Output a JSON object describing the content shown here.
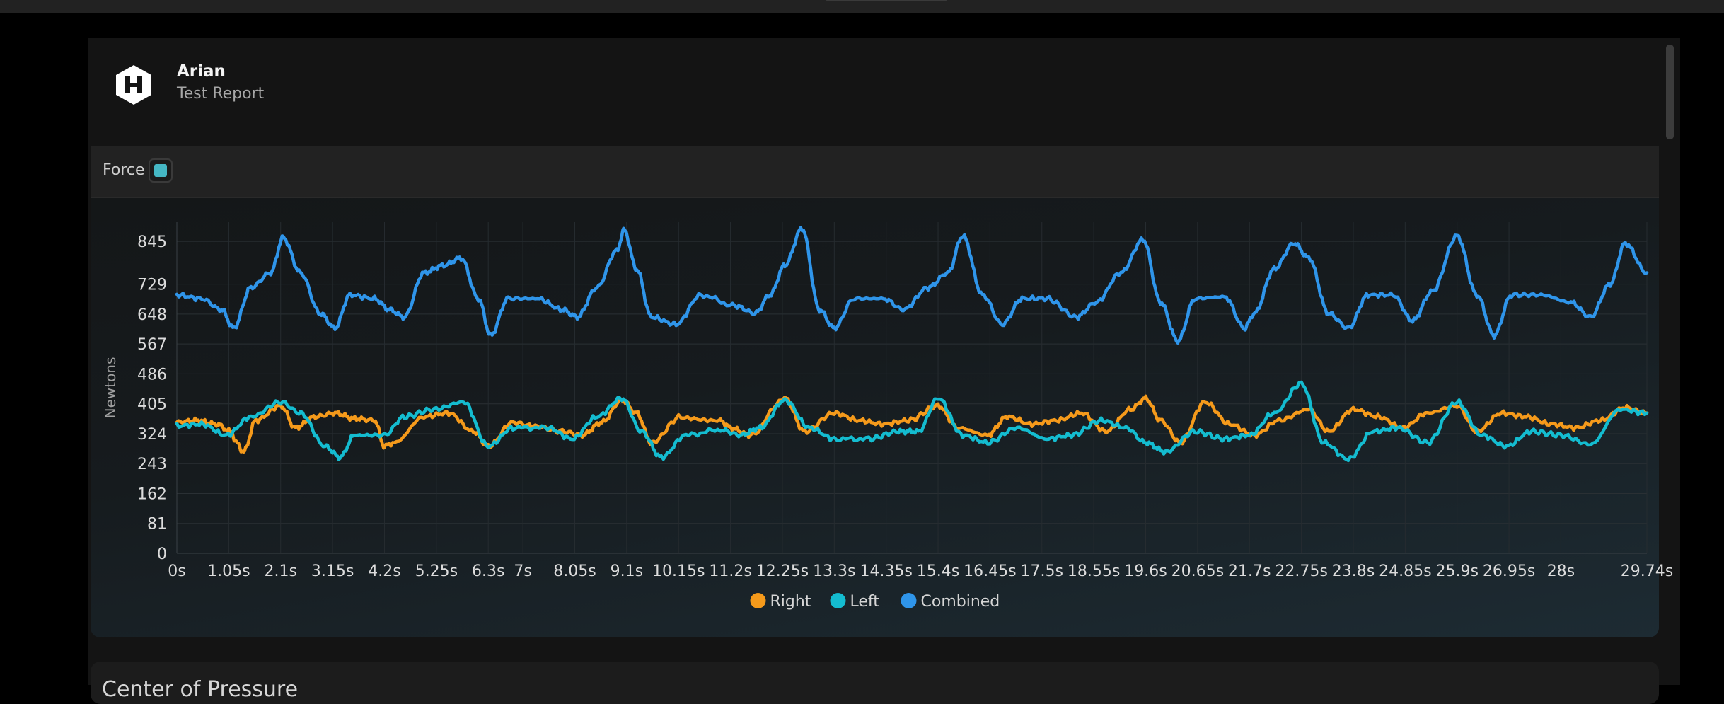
{
  "header": {
    "user_name": "Arian",
    "report_title": "Test Report",
    "logo_icon": "hexagon-h-logo-icon"
  },
  "force_card": {
    "label": "Force",
    "swatch_color": "#45b7c4"
  },
  "next_card": {
    "title": "Center of Pressure"
  },
  "chart_data": {
    "type": "line",
    "title": "Force",
    "xlabel": "",
    "ylabel": "Newtons",
    "xlim": [
      0,
      29.74
    ],
    "ylim": [
      0,
      897
    ],
    "y_ticks": [
      0,
      81,
      162,
      243,
      324,
      405,
      486,
      567,
      648,
      729,
      845
    ],
    "x_ticks": [
      "0s",
      "1.05s",
      "2.1s",
      "3.15s",
      "4.2s",
      "5.25s",
      "6.3s",
      "7s",
      "8.05s",
      "9.1s",
      "10.15s",
      "11.2s",
      "12.25s",
      "13.3s",
      "14.35s",
      "15.4s",
      "16.45s",
      "17.5s",
      "18.55s",
      "19.6s",
      "20.65s",
      "21.7s",
      "22.75s",
      "23.8s",
      "24.85s",
      "25.9s",
      "26.95s",
      "28s",
      "29.74s"
    ],
    "x_tick_values": [
      0,
      1.05,
      2.1,
      3.15,
      4.2,
      5.25,
      6.3,
      7,
      8.05,
      9.1,
      10.15,
      11.2,
      12.25,
      13.3,
      14.35,
      15.4,
      16.45,
      17.5,
      18.55,
      19.6,
      20.65,
      21.7,
      22.75,
      23.8,
      24.85,
      25.9,
      26.95,
      28,
      29.74
    ],
    "grid": true,
    "legend_position": "bottom-center",
    "series": [
      {
        "name": "Right",
        "color": "#f59a1b",
        "x": [
          0,
          0.4,
          0.8,
          1.1,
          1.2,
          1.35,
          1.6,
          2.1,
          2.4,
          2.8,
          3.2,
          3.6,
          4.0,
          4.2,
          4.4,
          5.0,
          5.5,
          6.0,
          6.3,
          6.8,
          7.2,
          7.8,
          8.2,
          8.6,
          9.0,
          9.3,
          9.6,
          10.2,
          11.0,
          11.2,
          11.6,
          12.3,
          12.7,
          13.3,
          13.8,
          14.3,
          14.8,
          15.4,
          15.8,
          16.4,
          16.8,
          17.3,
          17.8,
          18.3,
          18.8,
          19.3,
          19.6,
          19.9,
          20.3,
          20.8,
          21.3,
          21.8,
          22.3,
          22.9,
          23.3,
          23.8,
          24.3,
          24.8,
          25.3,
          25.9,
          26.3,
          26.8,
          27.3,
          27.8,
          28.3,
          28.8,
          29.3,
          29.74
        ],
        "values": [
          355,
          360,
          350,
          330,
          300,
          275,
          360,
          400,
          340,
          370,
          380,
          365,
          360,
          290,
          300,
          370,
          380,
          330,
          290,
          355,
          345,
          330,
          320,
          355,
          415,
          380,
          300,
          370,
          360,
          340,
          320,
          420,
          330,
          380,
          360,
          350,
          360,
          400,
          340,
          320,
          370,
          350,
          360,
          380,
          330,
          390,
          420,
          360,
          300,
          410,
          350,
          320,
          360,
          390,
          330,
          390,
          370,
          340,
          380,
          400,
          330,
          380,
          370,
          350,
          340,
          360,
          395,
          380
        ]
      },
      {
        "name": "Left",
        "color": "#14bcd0",
        "x": [
          0,
          0.5,
          1.0,
          1.5,
          2.1,
          2.5,
          3.0,
          3.3,
          3.6,
          4.2,
          4.6,
          5.2,
          5.8,
          6.3,
          6.8,
          7.5,
          8.0,
          8.5,
          9.0,
          9.4,
          9.8,
          10.3,
          11.0,
          11.4,
          11.8,
          12.3,
          12.8,
          13.3,
          14.0,
          14.6,
          15.0,
          15.4,
          15.9,
          16.4,
          17.0,
          17.6,
          18.1,
          18.7,
          19.2,
          19.6,
          20.0,
          20.6,
          21.2,
          21.7,
          22.2,
          22.75,
          23.2,
          23.7,
          24.2,
          24.7,
          25.3,
          25.9,
          26.4,
          26.9,
          27.4,
          28.0,
          28.6,
          29.2,
          29.74
        ],
        "values": [
          345,
          350,
          320,
          370,
          410,
          380,
          290,
          260,
          320,
          320,
          370,
          390,
          410,
          290,
          340,
          340,
          310,
          370,
          420,
          330,
          260,
          320,
          335,
          320,
          340,
          415,
          340,
          310,
          310,
          330,
          330,
          420,
          320,
          300,
          340,
          310,
          320,
          360,
          340,
          300,
          275,
          330,
          310,
          320,
          380,
          460,
          300,
          255,
          330,
          340,
          300,
          410,
          320,
          290,
          330,
          320,
          295,
          390,
          380
        ]
      },
      {
        "name": "Combined",
        "color": "#2f95ea",
        "x": [
          0,
          0.5,
          0.9,
          1.15,
          1.5,
          1.9,
          2.15,
          2.5,
          2.9,
          3.2,
          3.5,
          4.0,
          4.3,
          4.6,
          5.0,
          5.4,
          5.75,
          6.1,
          6.35,
          6.7,
          7.3,
          7.8,
          8.1,
          8.5,
          8.9,
          9.05,
          9.3,
          9.6,
          10.1,
          10.6,
          11.3,
          11.7,
          12.0,
          12.3,
          12.65,
          13.0,
          13.3,
          13.7,
          14.3,
          14.7,
          15.2,
          15.6,
          15.9,
          16.3,
          16.7,
          17.1,
          17.6,
          18.2,
          18.6,
          19.1,
          19.55,
          19.9,
          20.25,
          20.6,
          21.2,
          21.6,
          21.8,
          22.2,
          22.6,
          22.9,
          23.3,
          23.7,
          24.1,
          24.6,
          25.0,
          25.4,
          25.9,
          26.3,
          26.65,
          27.0,
          27.6,
          28.2,
          28.6,
          29.0,
          29.3,
          29.74
        ],
        "values": [
          700,
          690,
          660,
          610,
          720,
          760,
          855,
          760,
          650,
          610,
          700,
          690,
          660,
          640,
          760,
          780,
          800,
          690,
          590,
          690,
          690,
          660,
          640,
          720,
          820,
          875,
          770,
          640,
          620,
          700,
          670,
          650,
          700,
          780,
          880,
          660,
          610,
          690,
          690,
          660,
          720,
          760,
          860,
          700,
          620,
          690,
          690,
          640,
          680,
          760,
          850,
          680,
          575,
          690,
          695,
          610,
          650,
          770,
          840,
          800,
          650,
          610,
          700,
          700,
          630,
          710,
          860,
          700,
          590,
          700,
          700,
          680,
          640,
          730,
          840,
          760
        ]
      }
    ]
  }
}
